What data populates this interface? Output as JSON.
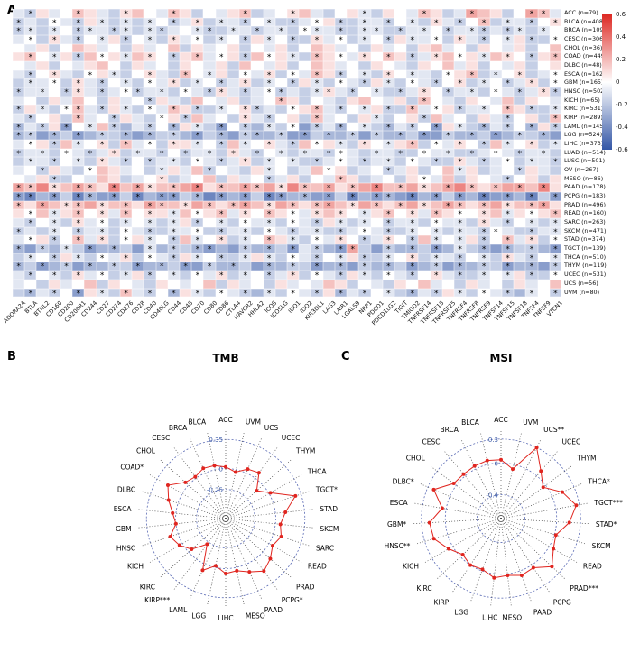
{
  "figure": {
    "panel_a_label": "A",
    "panel_b_label": "B",
    "panel_c_label": "C"
  },
  "colors": {
    "heat_positive": "#dd2a24",
    "heat_negative": "#3356a6",
    "heat_mid": "#ffffff",
    "radar_line": "#e0251f",
    "radar_ring": "#5b6bb5",
    "radar_tick_label": "#3c5ba8",
    "spoke": "#444444"
  },
  "chart_data": [
    {
      "id": "immune-checkpoint-heatmap",
      "type": "heatmap",
      "title": "",
      "columns": [
        "ADORA2A",
        "BTLA",
        "BTNL2",
        "CD160",
        "CD200",
        "CD200R1",
        "CD244",
        "CD27",
        "CD274",
        "CD276",
        "CD28",
        "CD40",
        "CD40LG",
        "CD44",
        "CD48",
        "CD70",
        "CD80",
        "CD86",
        "CTLA4",
        "HAVCR2",
        "HHLA2",
        "ICOS",
        "ICOSLG",
        "IDO1",
        "IDO2",
        "KIR3DL1",
        "LAG3",
        "LAIR1",
        "LGALS9",
        "NRP1",
        "PDCD1",
        "PDCD1LG2",
        "TIGIT",
        "TMIGD2",
        "TNFRSF14",
        "TNFRSF18",
        "TNFRSF25",
        "TNFRSF4",
        "TNFRSF8",
        "TNFRSF9",
        "TNFSF14",
        "TNFSF15",
        "TNFSF18",
        "TNFSF4",
        "TNFSF9",
        "VTCN1"
      ],
      "rows": [
        "ACC (n=79)",
        "BLCA (n=408)",
        "BRCA (n=1097)",
        "CESC (n=306)",
        "CHOL (n=36)",
        "COAD (n=449)",
        "DLBC (n=48)",
        "ESCA (n=162)",
        "GBM (n=165)",
        "HNSC (n=502)",
        "KICH (n=65)",
        "KIRC (n=531)",
        "KIRP (n=289)",
        "LAML (n=145)",
        "LGG (n=524)",
        "LIHC (n=373)",
        "LUAD (n=514)",
        "LUSC (n=501)",
        "OV (n=267)",
        "MESO (n=86)",
        "PAAD (n=178)",
        "PCPG (n=183)",
        "PRAD (n=496)",
        "READ (n=160)",
        "SARC (n=263)",
        "SKCM (n=471)",
        "STAD (n=374)",
        "TGCT (n=139)",
        "THCA (n=510)",
        "THYM (n=119)",
        "UCEC (n=531)",
        "UCS (n=56)",
        "UVM (n=80)"
      ],
      "value_encoding": {
        "note": "each row is a 46-char string; letter = estimated correlation, uppercase = significant (*)",
        "levels": {
          "a": -0.6,
          "b": -0.5,
          "c": -0.4,
          "d": -0.3,
          "e": -0.2,
          "f": -0.1,
          "g": 0,
          "h": 0.1,
          "i": 0.2,
          "j": 0.3,
          "k": 0.4,
          "l": 0.5,
          "m": 0.6
        }
      },
      "cells": [
        "fEhfgIhfeHigfIhegfhIefgHifeghFehgfIhefJihegJIf",
        "EfeGfEhFeFeFgEfHeFfEgFeEfGhEeFfEgFeHfEgIeFfEgH",
        "EFeFgEFfEFeFEfgFEeFfEfFeGFfEeFFeEfFgEfFEfEFeFg",
        "fGeHfEgFhEgFeHfGeFgEhFgEeHfGeFgEhFfGeHfEgFhEeG",
        "gfhegihfgehfgiehfghegfhegihfgehfgehifgehgfhegi",
        "hIgFhEiGhFiHgEhIfGhEiGhFeIhGfHgIhEfHiGhFiHgEhI",
        "gfhegfhigehfgehgfheigfhegihfgehgfehgifhegfhegh",
        "fEgHfeGhFegHfeIgFheGfHeGfIhEgFeHgFfeGhIeFgHefG",
        "eFfGeHfEgFeGfHeFgEfHeFgEhFeGfEhFeGfEgHeFgEfHeG",
        "EfFgEHfEfGEfFeGfEHfEfGEfeFHfEgFeEfHgEfFeGfEfHE",
        "fgehfigehfgEhfeigfhefgIhegfehigfheIgfehgfiehgf",
        "EhFeGIfEhFeGfIhEeFgHEfeGhIfEgFhEeIfGhEfFgIhEeF",
        "fEgheIfgEhfeGhEifgeHfEgheIfgehFeghEifgehfEgheI",
        "DfEhCgFiEdfEgDhFeCgEdFeGcEfDgFeDfEgChFeDfEgDhE",
        "DEcDeCdEeDcDeEdCeDcEDdEcCeDdEcEdDeCcEdDeCdEeDc",
        "fGhEiFgHeIfGeHhFgEiFgHfEiGhFeHgFhIeGfHgEiFgHeF",
        "EfFeGfEfHeFfEgEfFeHfEgFeFfEGfeFfEeGfFeEfGfEfFe",
        "eFfEgFeHfEgEfFeGfEfHeFgFeEfGfEfFeGfEeHfEfGeFfE",
        "fgEhfeGihfgeFhfiEgfehFgefiGhefgEfhegiFhefgEhfe",
        "gfhEegfihefgHefgiehfgEfhegfIhefgehGfiehgfEgheh",
        "JIkHiJIhKiJHiIjKhIiJIjHkIiJhIjKiIjHiJkIhIjJiKh",
        "CBdCeBDcCeBdCCeDbCdCeBCdDcCeBdCDcBdCeCdBcCdBeC",
        "IhJiHIjHiIhJIiHjIhIJiHjIhIJiHjIhIjHiJIhIjHiIJh",
        "hGiFhIgHfIgHhFiGhIfHgIhGfHiHgFhIgHfIhGgHiFhGhI",
        "fEgFeHfGeFgFeFhEgFeGfFeGfEhFeFgEfFeGfFeHfEgFeF",
        "EfeFgEfFeGfEeFfGeEfFeGfEfFeEfGfEeFgFeFfEGfeEfF",
        "fGhEgIfHeGhFgEiFgHeFgIhFeGfHgEfHgEiFgFhEgIfHeG",
        "DcEdFeCdDecFdEeDCdcEdDeCfEdCJecEdDeCdFeDcDeEdC",
        "eFgEhFeGfHeGfEhFgEeFhFeGfEgFhEeFgHeFfEgFeHfEgF",
        "DeCdEcDdEeCdDeCcEdDecDdEeCdDcEdDeCdEcDdEeCdDcE",
        "fEgFeHfGeFhEgFeGfHeFgEfHeGfEhFeGfEgHfEeFgFhEeG",
        "fgehfgiehgfehgfgiehfgehfgfihegfehgifgehfgehfgi",
        "eDfEgChFeIfEgDhFeGfEdFeGfEhDfEgFeDfEhFeGfEdFgE"
      ],
      "colorbar_ticks": [
        "0.6",
        "0.4",
        "0.2",
        "0",
        "-0.2",
        "-0.4",
        "-0.6"
      ],
      "color_scale": {
        "min": -0.7,
        "mid": 0,
        "max": 0.7
      }
    },
    {
      "id": "tmb-radar",
      "type": "radar",
      "title": "TMB",
      "categories": [
        "ACC",
        "UVM",
        "UCS",
        "UCEC",
        "THYM",
        "THCA",
        "TGCT*",
        "STAD",
        "SKCM",
        "SARC",
        "READ",
        "PRAD",
        "PCPG*",
        "PAAD",
        "MESO",
        "LIHC",
        "LGG",
        "LAML",
        "KIRP***",
        "KIRC",
        "KICH",
        "HNSC",
        "GBM",
        "ESCA",
        "DLBC",
        "COAD*",
        "CHOL",
        "CESC",
        "BRCA",
        "BLCA"
      ],
      "values": [
        0.02,
        -0.03,
        0.05,
        0.08,
        -0.1,
        0.02,
        0.28,
        0.12,
        0.06,
        0.1,
        0.05,
        0.12,
        0.18,
        0.1,
        0.04,
        0.06,
        -0.02,
        0.08,
        -0.22,
        -0.05,
        0.04,
        0.1,
        0,
        0.04,
        0.12,
        0.2,
        0.05,
        0.02,
        0.06,
        0.05
      ],
      "tick_values": [
        0.35,
        0,
        -0.25
      ],
      "tick_labels": [
        "0.35",
        "0",
        "-0.25"
      ],
      "range": [
        -0.6,
        0.45
      ]
    },
    {
      "id": "msi-radar",
      "type": "radar",
      "title": "MSI",
      "categories": [
        "ACC",
        "UVM",
        "UCS**",
        "UCEC",
        "THYM",
        "THCA*",
        "TGCT***",
        "STAD*",
        "SKCM",
        "READ",
        "PRAD***",
        "PCPG",
        "PAAD",
        "MESO",
        "LIHC",
        "LGG",
        "KIRP",
        "KIRC",
        "KICH",
        "HNSC**",
        "GBM*",
        "ESCA",
        "DLBC*",
        "CHOL",
        "CESC",
        "BRCA",
        "BLCA"
      ],
      "values": [
        0.04,
        -0.06,
        0.3,
        0.08,
        -0.04,
        0.14,
        0.26,
        0.16,
        0.02,
        0.06,
        0.18,
        0.04,
        0.06,
        0.02,
        0.05,
        -0.02,
        0,
        -0.04,
        0.06,
        0.18,
        0.2,
        0.05,
        0.22,
        0.04,
        0.03,
        0.04,
        0.05
      ],
      "tick_values": [
        0.3,
        0,
        -0.4
      ],
      "tick_labels": [
        "0.3",
        "0",
        "-0.4"
      ],
      "range": [
        -0.7,
        0.4
      ]
    }
  ]
}
